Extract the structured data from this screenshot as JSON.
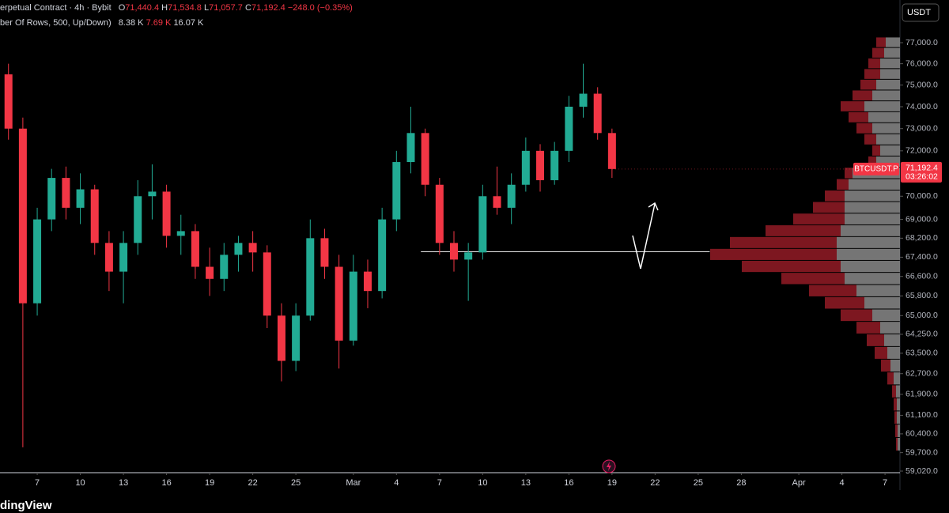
{
  "header": {
    "symbol_line": "erpetual Contract · 4h · Bybit",
    "o_key": "O",
    "o": "71,440.4",
    "h_key": "H",
    "h": "71,534.8",
    "l_key": "L",
    "l": "71,057.7",
    "c_key": "C",
    "c": "71,192.4",
    "change": "−248.0 (−0.35%)",
    "indicator": "ber Of Rows, 500, Up/Down)",
    "vol_up": "8.38 K",
    "vol_down": "7.69 K",
    "vol_total": "16.07 K"
  },
  "currency": "USDT",
  "footer": "dingView",
  "chart_data": {
    "type": "candlestick",
    "log_scale": true,
    "grid": false,
    "up_color": "#22ab94",
    "down_color": "#f23645",
    "x": [
      4,
      5,
      6,
      7,
      8,
      9,
      10,
      11,
      12,
      13,
      14,
      15,
      16,
      17,
      18,
      19,
      20,
      21,
      22,
      23,
      24,
      25,
      26,
      27,
      28,
      29,
      30,
      31,
      32,
      33,
      34,
      35,
      36,
      37,
      38,
      39,
      40,
      41,
      42,
      43,
      44,
      45,
      46
    ],
    "open": [
      75500,
      73000,
      65500,
      69000,
      70800,
      69500,
      70300,
      68000,
      66800,
      68000,
      70000,
      70200,
      68300,
      68500,
      67000,
      66500,
      67500,
      68000,
      67600,
      65000,
      63200,
      65000,
      68200,
      67000,
      64000,
      66800,
      66000,
      69000,
      71500,
      72800,
      70500,
      68000,
      67300,
      67600,
      70000,
      69500,
      70500,
      72000,
      70700,
      72000,
      74000,
      74600,
      72800
    ],
    "high": [
      76000,
      73500,
      69500,
      71200,
      71300,
      71000,
      70500,
      68500,
      68500,
      70700,
      71400,
      70500,
      69200,
      68800,
      67800,
      68000,
      68300,
      68500,
      67900,
      65500,
      65500,
      69000,
      68600,
      67500,
      67500,
      67300,
      69500,
      72000,
      74000,
      73000,
      70800,
      68500,
      68000,
      70500,
      71300,
      71000,
      72600,
      72300,
      72400,
      74500,
      76000,
      74900,
      73000
    ],
    "low": [
      72500,
      59900,
      65000,
      68500,
      69000,
      68800,
      67500,
      66000,
      65500,
      67500,
      69000,
      67800,
      67500,
      66500,
      65800,
      66000,
      66800,
      66800,
      64500,
      62400,
      62800,
      64800,
      66500,
      62900,
      63800,
      65300,
      65700,
      68500,
      71000,
      70000,
      67500,
      66800,
      65600,
      67300,
      69200,
      68800,
      70200,
      70200,
      70500,
      71500,
      73500,
      72500,
      70800
    ],
    "close": [
      73000,
      65500,
      69000,
      70800,
      69500,
      70300,
      68000,
      66800,
      68000,
      70000,
      70200,
      68300,
      68500,
      67000,
      66500,
      67500,
      68000,
      67600,
      65000,
      63200,
      65000,
      68200,
      67000,
      64000,
      66800,
      66000,
      69000,
      71500,
      72800,
      70500,
      68000,
      67300,
      67600,
      70000,
      69500,
      70500,
      72000,
      70700,
      72000,
      74000,
      74600,
      72800,
      71192.4
    ],
    "xlim": [
      3.41,
      66.04
    ],
    "xticks": [
      {
        "value": 6,
        "label": "7"
      },
      {
        "value": 9,
        "label": "10"
      },
      {
        "value": 12,
        "label": "13"
      },
      {
        "value": 15,
        "label": "16"
      },
      {
        "value": 18,
        "label": "19"
      },
      {
        "value": 21,
        "label": "22"
      },
      {
        "value": 24,
        "label": "25"
      },
      {
        "value": 28,
        "label": "Mar"
      },
      {
        "value": 31,
        "label": "4"
      },
      {
        "value": 34,
        "label": "7"
      },
      {
        "value": 37,
        "label": "10"
      },
      {
        "value": 40,
        "label": "13"
      },
      {
        "value": 43,
        "label": "16"
      },
      {
        "value": 46,
        "label": "19"
      },
      {
        "value": 49,
        "label": "22"
      },
      {
        "value": 52,
        "label": "25"
      },
      {
        "value": 55,
        "label": "28"
      },
      {
        "value": 59,
        "label": "Apr"
      },
      {
        "value": 62,
        "label": "4"
      },
      {
        "value": 65,
        "label": "7"
      }
    ],
    "ylim": [
      58962,
      79067
    ],
    "yticks": [
      {
        "value": 77000,
        "label": "77,000.0"
      },
      {
        "value": 76000,
        "label": "76,000.0"
      },
      {
        "value": 75000,
        "label": "75,000.0"
      },
      {
        "value": 74000,
        "label": "74,000.0"
      },
      {
        "value": 73000,
        "label": "73,000.0"
      },
      {
        "value": 72000,
        "label": "72,000.0"
      },
      {
        "value": 70000,
        "label": "70,000.0"
      },
      {
        "value": 69000,
        "label": "69,000.0"
      },
      {
        "value": 68200,
        "label": "68,200.0"
      },
      {
        "value": 67400,
        "label": "67,400.0"
      },
      {
        "value": 66600,
        "label": "66,600.0"
      },
      {
        "value": 65800,
        "label": "65,800.0"
      },
      {
        "value": 65000,
        "label": "65,000.0"
      },
      {
        "value": 64250,
        "label": "64,250.0"
      },
      {
        "value": 63500,
        "label": "63,500.0"
      },
      {
        "value": 62700,
        "label": "62,700.0"
      },
      {
        "value": 61900,
        "label": "61,900.0"
      },
      {
        "value": 61100,
        "label": "61,100.0"
      },
      {
        "value": 60400,
        "label": "60,400.0"
      },
      {
        "value": 59700,
        "label": "59,700.0"
      },
      {
        "value": 59020,
        "label": "59,020.0"
      }
    ],
    "last_price": {
      "symbol": "BTCUSDT.P",
      "value": 71192.4,
      "label": "71,192.4",
      "timer": "03:26:02"
    },
    "hline": {
      "value": 67630,
      "x": [
        32.7,
        52.8
      ]
    },
    "volume_profile": {
      "up_color": "#8a8a8a",
      "down_color": "#8b1a24",
      "levels": [
        60000,
        60500,
        61000,
        61500,
        62000,
        62500,
        63000,
        63500,
        64000,
        64500,
        65000,
        65500,
        66000,
        66500,
        67000,
        67500,
        68000,
        68500,
        69000,
        69500,
        70000,
        70500,
        71000,
        71500,
        72000,
        72500,
        73000,
        73500,
        74000,
        74500,
        75000,
        75500,
        76000,
        76500,
        77000
      ],
      "up": [
        3,
        3,
        4,
        4,
        5,
        8,
        12,
        16,
        20,
        25,
        35,
        45,
        55,
        70,
        75,
        80,
        80,
        75,
        70,
        70,
        70,
        65,
        60,
        30,
        25,
        30,
        35,
        40,
        45,
        35,
        30,
        25,
        25,
        20,
        18
      ],
      "down": [
        2,
        3,
        3,
        4,
        5,
        8,
        12,
        16,
        22,
        30,
        40,
        50,
        60,
        80,
        125,
        160,
        135,
        95,
        65,
        40,
        25,
        15,
        10,
        10,
        10,
        15,
        20,
        25,
        30,
        25,
        20,
        20,
        15,
        15,
        12
      ]
    }
  }
}
